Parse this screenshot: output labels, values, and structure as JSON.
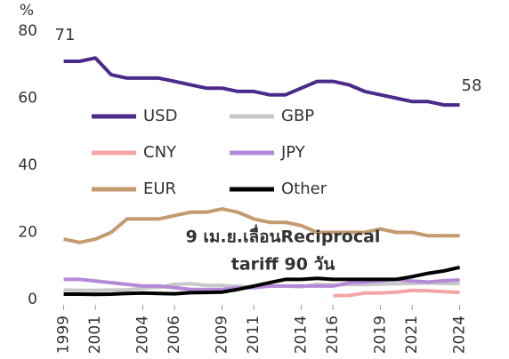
{
  "chart_data": {
    "type": "line",
    "y_unit": "%",
    "x": [
      1999,
      2000,
      2001,
      2002,
      2003,
      2004,
      2005,
      2006,
      2007,
      2008,
      2009,
      2010,
      2011,
      2012,
      2013,
      2014,
      2015,
      2016,
      2017,
      2018,
      2019,
      2020,
      2021,
      2022,
      2023,
      2024
    ],
    "series": [
      {
        "name": "USD",
        "color": "#4b2a8c",
        "values": [
          71,
          71,
          72,
          67,
          66,
          66,
          66,
          65,
          64,
          63,
          63,
          62,
          62,
          61,
          61,
          63,
          65,
          65,
          64,
          62,
          61,
          60,
          59,
          59,
          58,
          58
        ]
      },
      {
        "name": "GBP",
        "color": "#c8c8c8",
        "values": [
          2.8,
          2.7,
          2.7,
          2.8,
          2.8,
          3.4,
          3.6,
          4.5,
          4.7,
          4.2,
          4.2,
          3.9,
          3.8,
          4.0,
          4.0,
          3.8,
          4.5,
          4.3,
          4.5,
          4.4,
          4.6,
          4.7,
          4.8,
          4.9,
          4.8,
          4.7
        ]
      },
      {
        "name": "CNY",
        "color": "#f4a6a6",
        "values": [
          null,
          null,
          null,
          null,
          null,
          null,
          null,
          null,
          null,
          null,
          null,
          null,
          null,
          null,
          null,
          null,
          null,
          1.1,
          1.2,
          1.9,
          1.9,
          2.2,
          2.7,
          2.6,
          2.3,
          2.1
        ]
      },
      {
        "name": "JPY",
        "color": "#b48ad8",
        "values": [
          6,
          6,
          5.5,
          5,
          4.5,
          4,
          4,
          3.5,
          3,
          3,
          3,
          3.5,
          3.5,
          4,
          4,
          4,
          4,
          4,
          4.9,
          5.2,
          5.6,
          6,
          5.5,
          5.2,
          5.6,
          5.8
        ]
      },
      {
        "name": "EUR",
        "color": "#c39b6f",
        "values": [
          18,
          17,
          18,
          20,
          24,
          24,
          24,
          25,
          26,
          26,
          27,
          26,
          24,
          23,
          23,
          22,
          20,
          20,
          20,
          20,
          21,
          20,
          20,
          19,
          19,
          19
        ]
      },
      {
        "name": "Other",
        "color": "#000000",
        "values": [
          1.6,
          1.6,
          1.5,
          1.6,
          1.8,
          1.9,
          1.8,
          1.7,
          2.0,
          2.1,
          2.2,
          3,
          4,
          5,
          6,
          6,
          6.3,
          6,
          6,
          6,
          6,
          6,
          6.8,
          7.8,
          8.5,
          9.6
        ]
      }
    ],
    "xlim": [
      1998.8,
      2025.2
    ],
    "xticks": [
      1999,
      2001,
      2004,
      2006,
      2009,
      2011,
      2014,
      2016,
      2019,
      2021,
      2024
    ],
    "ylim": [
      0,
      80
    ],
    "yticks": [
      0,
      20,
      40,
      60,
      80
    ],
    "grid": false,
    "annotations": [
      {
        "text": "71"
      },
      {
        "text": "58"
      },
      {
        "lines": [
          "9 เม.ย.เลื่อนReciprocal",
          "tariff 90 วัน"
        ]
      }
    ]
  }
}
